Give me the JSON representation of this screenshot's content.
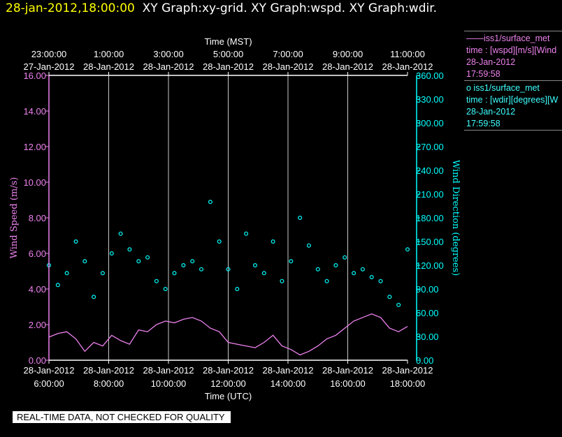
{
  "header": {
    "timestamp": "28-jan-2012,18:00:00",
    "titles": "XY Graph:xy-grid.  XY Graph:wspd.  XY Graph:wdir."
  },
  "legend": {
    "series1": {
      "name": "——iss1/surface_met",
      "var": "time : [wspd][m/s][Wind",
      "date": "28-Jan-2012",
      "time": "17:59:58"
    },
    "series2": {
      "name": "o  iss1/surface_met",
      "var": "time : [wdir][degrees][W",
      "date": "28-Jan-2012",
      "time": "17:59:58"
    }
  },
  "warning": "REAL-TIME DATA, NOT CHECKED FOR QUALITY",
  "colors": {
    "wspd": "#ee82ee",
    "wdir": "#00ffff",
    "timestamp": "#ffff00",
    "grid": "#c8c8c8"
  },
  "chart_data": {
    "type": "line",
    "top_axis": {
      "title": "Time (MST)",
      "ticks": [
        {
          "time": "23:00:00",
          "date": "27-Jan-2012"
        },
        {
          "time": "1:00:00",
          "date": "28-Jan-2012"
        },
        {
          "time": "3:00:00",
          "date": "28-Jan-2012"
        },
        {
          "time": "5:00:00",
          "date": "28-Jan-2012"
        },
        {
          "time": "7:00:00",
          "date": "28-Jan-2012"
        },
        {
          "time": "9:00:00",
          "date": "28-Jan-2012"
        },
        {
          "time": "11:00:00",
          "date": "28-Jan-2012"
        }
      ]
    },
    "x_axis": {
      "title": "Time (UTC)",
      "range_hours_utc": [
        6,
        18
      ],
      "ticks": [
        {
          "date": "28-Jan-2012",
          "time": "6:00:00"
        },
        {
          "date": "28-Jan-2012",
          "time": "8:00:00"
        },
        {
          "date": "28-Jan-2012",
          "time": "10:00:00"
        },
        {
          "date": "28-Jan-2012",
          "time": "12:00:00"
        },
        {
          "date": "28-Jan-2012",
          "time": "14:00:00"
        },
        {
          "date": "28-Jan-2012",
          "time": "16:00:00"
        },
        {
          "date": "28-Jan-2012",
          "time": "18:00:00"
        }
      ]
    },
    "y_left": {
      "title": "Wind Speed (m/s)",
      "range": [
        0,
        16
      ],
      "ticks": [
        "0.00",
        "2.00",
        "4.00",
        "6.00",
        "8.00",
        "10.00",
        "12.00",
        "14.00",
        "16.00"
      ]
    },
    "y_right": {
      "title": "Wind Direction (degrees)",
      "range": [
        0,
        360
      ],
      "ticks": [
        "0.00",
        "30.00",
        "60.00",
        "90.00",
        "120.00",
        "150.00",
        "180.00",
        "210.00",
        "240.00",
        "270.00",
        "300.00",
        "330.00",
        "360.00"
      ]
    },
    "grid": true,
    "legend_position": "right",
    "series": [
      {
        "name": "iss1/surface_met wspd",
        "style": "line",
        "x": [
          6.0,
          6.3,
          6.6,
          6.9,
          7.2,
          7.5,
          7.8,
          8.1,
          8.4,
          8.7,
          9.0,
          9.3,
          9.6,
          9.9,
          10.2,
          10.5,
          10.8,
          11.1,
          11.4,
          11.7,
          12.0,
          12.3,
          12.6,
          12.9,
          13.2,
          13.5,
          13.8,
          14.1,
          14.4,
          14.7,
          15.0,
          15.3,
          15.6,
          15.9,
          16.2,
          16.5,
          16.8,
          17.1,
          17.4,
          17.7,
          18.0
        ],
        "y": [
          1.3,
          1.5,
          1.6,
          1.2,
          0.5,
          1.0,
          0.8,
          1.4,
          1.1,
          0.9,
          1.7,
          1.6,
          2.0,
          2.2,
          2.1,
          2.3,
          2.4,
          2.2,
          1.8,
          1.6,
          1.0,
          0.9,
          0.8,
          0.7,
          1.0,
          1.4,
          0.8,
          0.6,
          0.3,
          0.5,
          0.8,
          1.2,
          1.4,
          1.8,
          2.2,
          2.4,
          2.6,
          2.4,
          1.8,
          1.6,
          1.9
        ]
      },
      {
        "name": "iss1/surface_met wdir",
        "style": "markers",
        "x": [
          6.0,
          6.3,
          6.6,
          6.9,
          7.2,
          7.5,
          7.8,
          8.1,
          8.4,
          8.7,
          9.0,
          9.3,
          9.6,
          9.9,
          10.2,
          10.5,
          10.8,
          11.1,
          11.4,
          11.7,
          12.0,
          12.3,
          12.6,
          12.9,
          13.2,
          13.5,
          13.8,
          14.1,
          14.4,
          14.7,
          15.0,
          15.3,
          15.6,
          15.9,
          16.2,
          16.5,
          16.8,
          17.1,
          17.4,
          17.7,
          18.0
        ],
        "y": [
          120,
          95,
          110,
          150,
          125,
          80,
          110,
          135,
          160,
          140,
          125,
          130,
          100,
          90,
          110,
          120,
          125,
          115,
          200,
          150,
          115,
          90,
          160,
          120,
          110,
          150,
          100,
          125,
          180,
          145,
          115,
          100,
          120,
          130,
          110,
          115,
          105,
          100,
          80,
          70,
          140
        ]
      }
    ]
  }
}
